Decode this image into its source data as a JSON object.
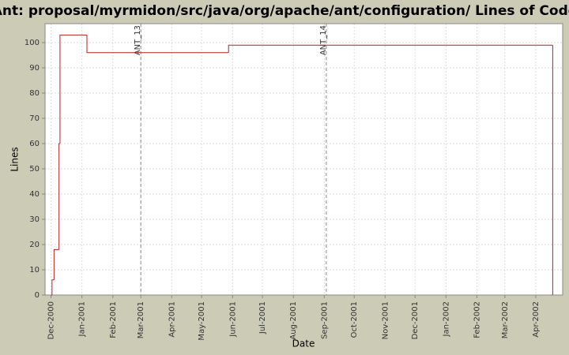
{
  "chart_data": {
    "type": "step-line",
    "title": "Ant: proposal/myrmidon/src/java/org/apache/ant/configuration/ Lines of Code",
    "x_label": "Date",
    "y_label": "Lines",
    "x": [
      "2000-12-01",
      "2000-12-02",
      "2000-12-04",
      "2000-12-09",
      "2000-12-10",
      "2001-01-06",
      "2001-05-28",
      "2002-04-18"
    ],
    "series": [
      {
        "name": "Lines",
        "color": "#b22222",
        "values": [
          0,
          6,
          18,
          60,
          103,
          96,
          99,
          0
        ]
      }
    ],
    "xlim": [
      "2000-11-25",
      "2002-04-28"
    ],
    "xticks": [
      {
        "value": "2000-12-01",
        "label": "Dec-2000"
      },
      {
        "value": "2001-01-01",
        "label": "Jan-2001"
      },
      {
        "value": "2001-02-01",
        "label": "Feb-2001"
      },
      {
        "value": "2001-03-01",
        "label": "Mar-2001"
      },
      {
        "value": "2001-04-01",
        "label": "Apr-2001"
      },
      {
        "value": "2001-05-01",
        "label": "May-2001"
      },
      {
        "value": "2001-06-01",
        "label": "Jun-2001"
      },
      {
        "value": "2001-07-01",
        "label": "Jul-2001"
      },
      {
        "value": "2001-08-01",
        "label": "Aug-2001"
      },
      {
        "value": "2001-09-01",
        "label": "Sep-2001"
      },
      {
        "value": "2001-10-01",
        "label": "Oct-2001"
      },
      {
        "value": "2001-11-01",
        "label": "Nov-2001"
      },
      {
        "value": "2001-12-01",
        "label": "Dec-2001"
      },
      {
        "value": "2002-01-01",
        "label": "Jan-2002"
      },
      {
        "value": "2002-02-01",
        "label": "Feb-2002"
      },
      {
        "value": "2002-03-01",
        "label": "Mar-2002"
      },
      {
        "value": "2002-04-01",
        "label": "Apr-2002"
      }
    ],
    "ylim": [
      0,
      107.5
    ],
    "yticks": [
      0,
      10,
      20,
      30,
      40,
      50,
      60,
      70,
      80,
      90,
      100
    ],
    "grid": true,
    "markers": [
      {
        "x": "2001-03-01",
        "label": "ANT_13"
      },
      {
        "x": "2001-09-03",
        "label": "ANT_14"
      }
    ]
  }
}
